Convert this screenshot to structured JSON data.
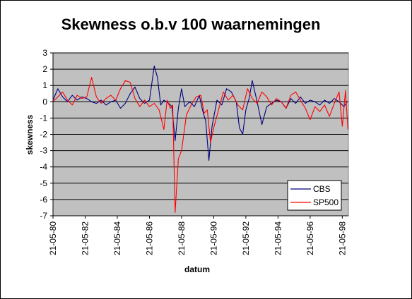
{
  "chart_data": {
    "type": "line",
    "title": "Skewness o.b.v 100 waarnemingen",
    "xlabel": "datum",
    "ylabel": "skewness",
    "ylim": [
      -7,
      3
    ],
    "yticks": [
      "3",
      "2",
      "1",
      "0",
      "-1",
      "-2",
      "-3",
      "-4",
      "-5",
      "-6",
      "-7"
    ],
    "xticks": [
      "21-05-80",
      "21-05-82",
      "21-05-84",
      "21-05-86",
      "21-05-88",
      "21-05-90",
      "21-05-92",
      "21-05-94",
      "21-05-96",
      "21-05-98"
    ],
    "grid": "horizontal",
    "plot_background": "#c0c0c0",
    "legend_position": "bottom-right",
    "series": [
      {
        "name": "CBS",
        "color": "#000080",
        "x": [
          1980.0,
          1980.3,
          1980.6,
          1980.9,
          1981.2,
          1981.5,
          1981.8,
          1982.1,
          1982.4,
          1982.7,
          1983.0,
          1983.3,
          1983.6,
          1983.9,
          1984.2,
          1984.5,
          1984.8,
          1985.1,
          1985.4,
          1985.7,
          1986.0,
          1986.3,
          1986.5,
          1986.7,
          1986.9,
          1987.2,
          1987.4,
          1987.6,
          1987.8,
          1988.0,
          1988.2,
          1988.5,
          1988.8,
          1989.1,
          1989.3,
          1989.5,
          1989.7,
          1989.9,
          1990.2,
          1990.5,
          1990.8,
          1991.1,
          1991.4,
          1991.6,
          1991.8,
          1992.0,
          1992.2,
          1992.4,
          1992.7,
          1993.0,
          1993.3,
          1993.6,
          1993.9,
          1994.2,
          1994.5,
          1994.8,
          1995.1,
          1995.4,
          1995.7,
          1996.0,
          1996.3,
          1996.6,
          1996.9,
          1997.2,
          1997.5,
          1997.8,
          1998.1,
          1998.3
        ],
        "values": [
          0.1,
          0.8,
          0.3,
          0.0,
          0.4,
          0.1,
          0.3,
          0.2,
          0.0,
          -0.1,
          0.1,
          -0.2,
          0.0,
          0.1,
          -0.4,
          -0.1,
          0.5,
          0.9,
          0.2,
          -0.1,
          0.1,
          2.2,
          1.5,
          -0.2,
          0.1,
          -0.1,
          -0.3,
          -2.4,
          -0.4,
          0.8,
          -0.3,
          0.0,
          -0.3,
          0.4,
          -0.5,
          -1.2,
          -3.6,
          -1.5,
          0.1,
          -0.2,
          0.8,
          0.6,
          0.0,
          -1.6,
          -2.0,
          -0.5,
          0.2,
          1.3,
          0.0,
          -1.4,
          -0.3,
          -0.1,
          0.1,
          0.0,
          -0.4,
          0.2,
          -0.1,
          0.3,
          -0.1,
          0.1,
          0.0,
          -0.2,
          0.1,
          -0.1,
          0.2,
          0.0,
          -0.3,
          0.0
        ]
      },
      {
        "name": "SP500",
        "color": "#ff0000",
        "x": [
          1980.0,
          1980.3,
          1980.6,
          1980.9,
          1981.2,
          1981.5,
          1981.8,
          1982.1,
          1982.4,
          1982.7,
          1983.0,
          1983.3,
          1983.6,
          1983.9,
          1984.2,
          1984.5,
          1984.8,
          1985.1,
          1985.4,
          1985.7,
          1986.0,
          1986.3,
          1986.6,
          1986.9,
          1987.1,
          1987.3,
          1987.45,
          1987.6,
          1987.8,
          1988.0,
          1988.3,
          1988.6,
          1988.9,
          1989.2,
          1989.4,
          1989.6,
          1989.8,
          1990.0,
          1990.3,
          1990.6,
          1990.9,
          1991.2,
          1991.5,
          1991.8,
          1992.1,
          1992.4,
          1992.7,
          1993.0,
          1993.3,
          1993.6,
          1993.9,
          1994.2,
          1994.5,
          1994.8,
          1995.1,
          1995.4,
          1995.7,
          1996.0,
          1996.3,
          1996.6,
          1996.9,
          1997.2,
          1997.5,
          1997.8,
          1998.0,
          1998.2,
          1998.35
        ],
        "values": [
          0.0,
          0.3,
          0.6,
          0.1,
          -0.2,
          0.4,
          0.2,
          0.3,
          1.5,
          0.3,
          -0.1,
          0.2,
          0.4,
          0.1,
          0.8,
          1.3,
          1.2,
          0.2,
          -0.3,
          0.1,
          -0.3,
          -0.1,
          -0.5,
          -1.7,
          0.1,
          -0.4,
          -0.2,
          -6.8,
          -3.5,
          -3.0,
          -0.8,
          -0.2,
          0.3,
          0.4,
          -0.7,
          -0.5,
          -2.5,
          -1.6,
          -0.5,
          0.6,
          0.1,
          0.4,
          -0.2,
          -0.5,
          0.8,
          0.2,
          -0.1,
          0.6,
          0.3,
          -0.2,
          0.2,
          0.0,
          -0.4,
          0.4,
          0.6,
          0.1,
          -0.4,
          -1.1,
          -0.3,
          -0.6,
          -0.2,
          -0.9,
          -0.1,
          0.6,
          -1.5,
          0.7,
          -1.7
        ]
      }
    ]
  }
}
